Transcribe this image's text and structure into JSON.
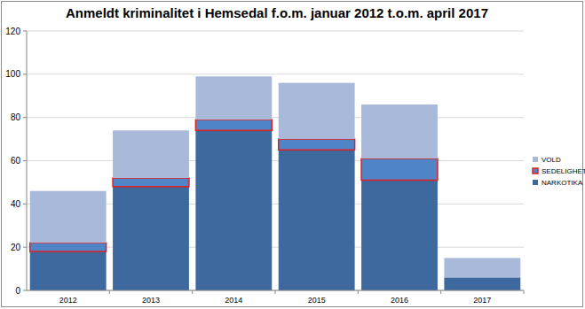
{
  "chart_data": {
    "type": "bar",
    "stacked": true,
    "title": "Anmeldt kriminalitet i Hemsedal f.o.m. januar 2012 t.o.m. april 2017",
    "categories": [
      "2012",
      "2013",
      "2014",
      "2015",
      "2016",
      "2017"
    ],
    "series": [
      {
        "name": "NARKOTIKA",
        "color": "#3e699f",
        "values": [
          18,
          48,
          74,
          65,
          51,
          6
        ]
      },
      {
        "name": "SEDELIGHET",
        "color": "#4f85c6",
        "values": [
          4,
          4,
          5,
          5,
          10,
          0
        ]
      },
      {
        "name": "VOLD",
        "color": "#a9b9da",
        "values": [
          24,
          22,
          20,
          26,
          25,
          9
        ]
      }
    ],
    "ylim": [
      0,
      120
    ],
    "yticks": [
      0,
      20,
      40,
      60,
      80,
      100,
      120
    ],
    "grid": true,
    "legend": "right"
  }
}
